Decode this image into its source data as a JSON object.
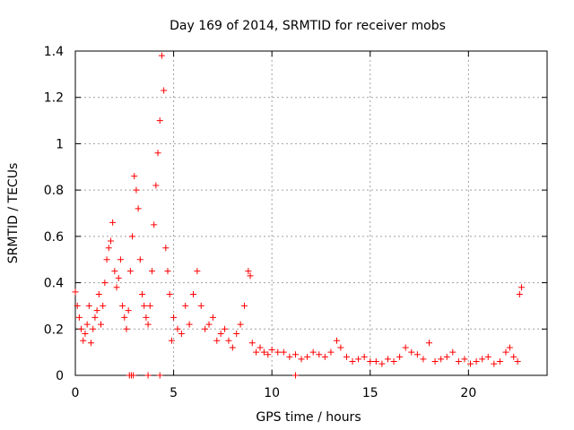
{
  "chart_data": {
    "type": "scatter",
    "title": "Day 169 of 2014, SRMTID for receiver mobs",
    "xlabel": "GPS time / hours",
    "ylabel": "SRMTID / TECUs",
    "xlim": [
      0,
      24
    ],
    "ylim": [
      0,
      1.4
    ],
    "xticks": [
      0,
      5,
      10,
      15,
      20
    ],
    "xtick_labels": [
      "0",
      "5",
      "10",
      "15",
      "20"
    ],
    "yticks": [
      0,
      0.2,
      0.4,
      0.6,
      0.8,
      1.0,
      1.2,
      1.4
    ],
    "ytick_labels": [
      "0",
      "0.2",
      "0.4",
      "0.6",
      "0.8",
      "1",
      "1.2",
      "1.4"
    ],
    "grid": true,
    "marker": "+",
    "series": [
      {
        "name": "SRMTID",
        "color": "#ff0000",
        "x": [
          0.0,
          0.1,
          0.2,
          0.3,
          0.4,
          0.5,
          0.6,
          0.7,
          0.8,
          0.9,
          1.0,
          1.1,
          1.2,
          1.3,
          1.4,
          1.5,
          1.6,
          1.7,
          1.8,
          1.9,
          2.0,
          2.1,
          2.2,
          2.3,
          2.4,
          2.5,
          2.6,
          2.7,
          2.8,
          2.9,
          3.0,
          3.1,
          3.2,
          3.3,
          3.4,
          3.5,
          3.6,
          3.7,
          3.8,
          3.9,
          4.0,
          4.1,
          4.2,
          4.3,
          4.4,
          4.5,
          4.6,
          4.7,
          4.8,
          4.9,
          5.0,
          5.2,
          5.4,
          5.6,
          5.8,
          6.0,
          6.2,
          6.4,
          6.6,
          6.8,
          7.0,
          7.2,
          7.4,
          7.6,
          7.8,
          8.0,
          8.2,
          8.4,
          8.6,
          8.8,
          8.9,
          9.0,
          9.2,
          9.4,
          9.6,
          9.8,
          10.0,
          10.3,
          10.6,
          10.9,
          11.2,
          11.5,
          11.8,
          12.1,
          12.4,
          12.7,
          13.0,
          13.3,
          13.5,
          13.8,
          14.1,
          14.4,
          14.7,
          15.0,
          15.3,
          15.6,
          15.9,
          16.2,
          16.5,
          16.8,
          17.1,
          17.4,
          17.7,
          18.0,
          18.3,
          18.6,
          18.9,
          19.2,
          19.5,
          19.8,
          20.1,
          20.4,
          20.7,
          21.0,
          21.3,
          21.6,
          21.9,
          22.1,
          22.3,
          22.5,
          22.6,
          22.7
        ],
        "y": [
          0.36,
          0.3,
          0.25,
          0.2,
          0.15,
          0.18,
          0.22,
          0.3,
          0.14,
          0.2,
          0.25,
          0.28,
          0.35,
          0.22,
          0.3,
          0.4,
          0.5,
          0.55,
          0.58,
          0.66,
          0.45,
          0.38,
          0.42,
          0.5,
          0.3,
          0.25,
          0.2,
          0.28,
          0.45,
          0.6,
          0.86,
          0.8,
          0.72,
          0.5,
          0.35,
          0.3,
          0.25,
          0.22,
          0.3,
          0.45,
          0.65,
          0.82,
          0.96,
          1.1,
          1.38,
          1.23,
          0.55,
          0.45,
          0.35,
          0.15,
          0.25,
          0.2,
          0.18,
          0.3,
          0.22,
          0.35,
          0.45,
          0.3,
          0.2,
          0.22,
          0.25,
          0.15,
          0.18,
          0.2,
          0.15,
          0.12,
          0.18,
          0.22,
          0.3,
          0.45,
          0.43,
          0.14,
          0.1,
          0.12,
          0.1,
          0.09,
          0.11,
          0.1,
          0.1,
          0.08,
          0.09,
          0.07,
          0.08,
          0.1,
          0.09,
          0.08,
          0.1,
          0.15,
          0.12,
          0.08,
          0.06,
          0.07,
          0.08,
          0.06,
          0.06,
          0.05,
          0.07,
          0.06,
          0.08,
          0.12,
          0.1,
          0.09,
          0.07,
          0.14,
          0.06,
          0.07,
          0.08,
          0.1,
          0.06,
          0.07,
          0.05,
          0.06,
          0.07,
          0.08,
          0.05,
          0.06,
          0.1,
          0.12,
          0.08,
          0.06,
          0.35,
          0.38
        ],
        "outliers_x": [
          2.75,
          2.85,
          2.95,
          3.7,
          4.3,
          11.2
        ],
        "outliers_y": [
          0.0,
          0.0,
          0.0,
          0.0,
          0.0,
          0.0
        ]
      }
    ]
  }
}
